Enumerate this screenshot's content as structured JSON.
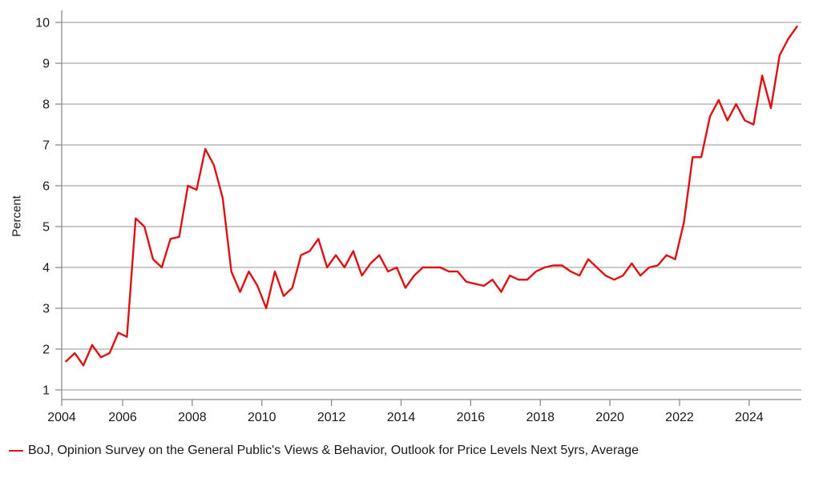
{
  "chart_data": {
    "type": "line",
    "title": "",
    "xlabel": "",
    "ylabel": "Percent",
    "grid": "horizontal",
    "legend_position": "bottom-left",
    "ylim": [
      0.75,
      10.3
    ],
    "y_ticks": [
      1,
      2,
      3,
      4,
      5,
      6,
      7,
      8,
      9,
      10
    ],
    "x_tick_labels": [
      "2004",
      "2006",
      "2008",
      "2010",
      "2012",
      "2014",
      "2016",
      "2018",
      "2020",
      "2022",
      "2024"
    ],
    "colors": {
      "line": "#dd1111",
      "grid": "#a9a9a9",
      "axis": "#8c8c8c",
      "text": "#1a1a1a"
    },
    "series": [
      {
        "name": "BoJ, Opinion Survey on the General Public's Views & Behavior, Outlook for Price Levels Next 5yrs, Average",
        "color": "#dd1111",
        "frequency": "quarterly",
        "x": [
          "2004-06",
          "2004-09",
          "2004-12",
          "2005-03",
          "2005-06",
          "2005-09",
          "2005-12",
          "2006-03",
          "2006-06",
          "2006-09",
          "2006-12",
          "2007-03",
          "2007-06",
          "2007-09",
          "2007-12",
          "2008-03",
          "2008-06",
          "2008-09",
          "2008-12",
          "2009-03",
          "2009-06",
          "2009-09",
          "2009-12",
          "2010-03",
          "2010-06",
          "2010-09",
          "2010-12",
          "2011-03",
          "2011-06",
          "2011-09",
          "2011-12",
          "2012-03",
          "2012-06",
          "2012-09",
          "2012-12",
          "2013-03",
          "2013-06",
          "2013-09",
          "2013-12",
          "2014-03",
          "2014-06",
          "2014-09",
          "2014-12",
          "2015-03",
          "2015-06",
          "2015-09",
          "2015-12",
          "2016-03",
          "2016-06",
          "2016-09",
          "2016-12",
          "2017-03",
          "2017-06",
          "2017-09",
          "2017-12",
          "2018-03",
          "2018-06",
          "2018-09",
          "2018-12",
          "2019-03",
          "2019-06",
          "2019-09",
          "2019-12",
          "2020-03",
          "2020-06",
          "2020-09",
          "2020-12",
          "2021-03",
          "2021-06",
          "2021-09",
          "2021-12",
          "2022-03",
          "2022-06",
          "2022-09",
          "2022-12",
          "2023-03",
          "2023-06",
          "2023-09",
          "2023-12",
          "2024-03",
          "2024-06",
          "2024-09",
          "2024-12",
          "2025-03",
          "2025-06"
        ],
        "values": [
          1.7,
          1.9,
          1.6,
          2.1,
          1.8,
          1.9,
          2.4,
          2.3,
          5.2,
          5.0,
          4.2,
          4.0,
          4.7,
          4.75,
          6.0,
          5.9,
          6.9,
          6.5,
          5.7,
          3.9,
          3.4,
          3.9,
          3.55,
          3.0,
          3.9,
          3.3,
          3.5,
          4.3,
          4.4,
          4.7,
          4.0,
          4.3,
          4.0,
          4.4,
          3.8,
          4.1,
          4.3,
          3.9,
          4.0,
          3.5,
          3.8,
          4.0,
          4.0,
          4.0,
          3.9,
          3.9,
          3.65,
          3.6,
          3.55,
          3.7,
          3.4,
          3.8,
          3.7,
          3.7,
          3.9,
          4.0,
          4.05,
          4.05,
          3.9,
          3.8,
          4.2,
          4.0,
          3.8,
          3.7,
          3.8,
          4.1,
          3.8,
          4.0,
          4.05,
          4.3,
          4.2,
          5.1,
          6.7,
          6.7,
          7.7,
          8.1,
          7.6,
          8.0,
          7.6,
          7.5,
          8.7,
          7.9,
          9.2,
          9.6,
          9.9
        ]
      }
    ]
  }
}
